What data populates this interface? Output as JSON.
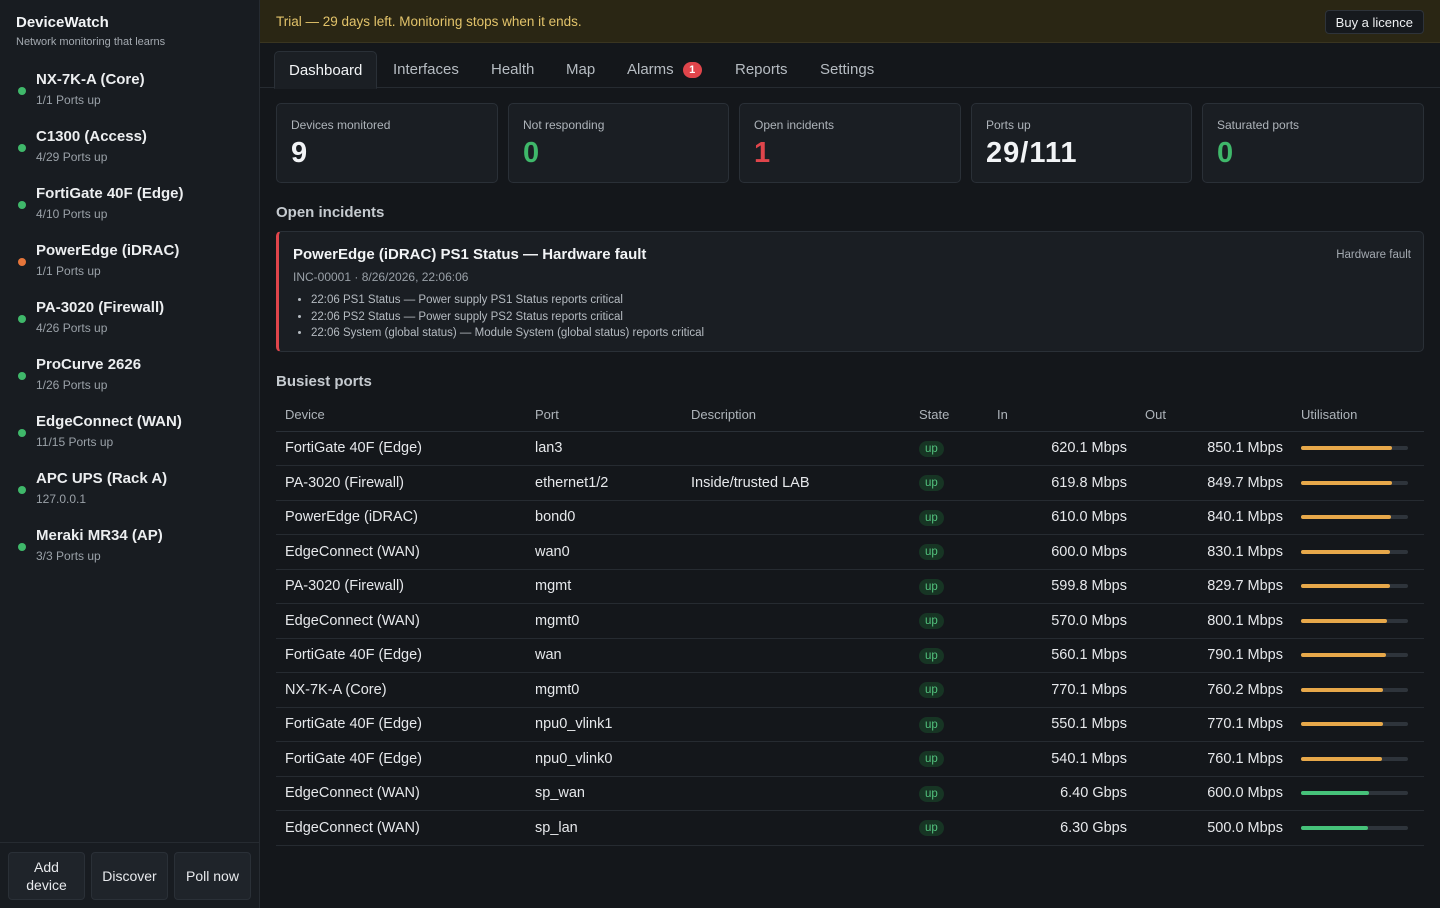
{
  "app": {
    "title": "DeviceWatch",
    "subtitle": "Network monitoring that learns"
  },
  "sidebar": {
    "devices": [
      {
        "name": "NX-7K-A (Core)",
        "sub": "1/1 Ports up",
        "status": "ok"
      },
      {
        "name": "C1300 (Access)",
        "sub": "4/29 Ports up",
        "status": "ok"
      },
      {
        "name": "FortiGate 40F (Edge)",
        "sub": "4/10 Ports up",
        "status": "ok"
      },
      {
        "name": "PowerEdge (iDRAC)",
        "sub": "1/1 Ports up",
        "status": "warn"
      },
      {
        "name": "PA-3020 (Firewall)",
        "sub": "4/26 Ports up",
        "status": "ok"
      },
      {
        "name": "ProCurve 2626",
        "sub": "1/26 Ports up",
        "status": "ok"
      },
      {
        "name": "EdgeConnect (WAN)",
        "sub": "11/15 Ports up",
        "status": "ok"
      },
      {
        "name": "APC UPS (Rack A)",
        "sub": "127.0.0.1",
        "status": "ok"
      },
      {
        "name": "Meraki MR34 (AP)",
        "sub": "3/3 Ports up",
        "status": "ok"
      }
    ],
    "actions": {
      "add": "Add device",
      "discover": "Discover",
      "poll": "Poll now"
    }
  },
  "banner": {
    "text": "Trial — 29 days left. Monitoring stops when it ends.",
    "buy": "Buy a licence"
  },
  "tabs": {
    "dashboard": "Dashboard",
    "interfaces": "Interfaces",
    "health": "Health",
    "map": "Map",
    "alarms": "Alarms",
    "alarms_count": "1",
    "reports": "Reports",
    "settings": "Settings"
  },
  "stats": {
    "devices": {
      "label": "Devices monitored",
      "value": "9"
    },
    "not_responding": {
      "label": "Not responding",
      "value": "0"
    },
    "open_incidents": {
      "label": "Open incidents",
      "value": "1"
    },
    "ports_up": {
      "label": "Ports up",
      "value": "29/111"
    },
    "saturated": {
      "label": "Saturated ports",
      "value": "0"
    }
  },
  "incidents": {
    "title": "Open incidents",
    "items": [
      {
        "title": "PowerEdge (iDRAC) PS1 Status — Hardware fault",
        "meta": "INC-00001 · 8/26/2026, 22:06:06",
        "tag": "Hardware fault",
        "events": [
          "22:06 PS1 Status — Power supply PS1 Status reports critical",
          "22:06 PS2 Status — Power supply PS2 Status reports critical",
          "22:06 System (global status) — Module System (global status) reports critical"
        ]
      }
    ]
  },
  "busiest": {
    "title": "Busiest ports",
    "columns": {
      "device": "Device",
      "port": "Port",
      "description": "Description",
      "state": "State",
      "in": "In",
      "out": "Out",
      "util": "Utilisation"
    },
    "rows": [
      {
        "device": "FortiGate 40F (Edge)",
        "port": "lan3",
        "description": "",
        "state": "up",
        "in": "620.1 Mbps",
        "out": "850.1 Mbps",
        "util": 0.85
      },
      {
        "device": "PA-3020 (Firewall)",
        "port": "ethernet1/2",
        "description": "Inside/trusted LAB",
        "state": "up",
        "in": "619.8 Mbps",
        "out": "849.7 Mbps",
        "util": 0.85
      },
      {
        "device": "PowerEdge (iDRAC)",
        "port": "bond0",
        "description": "",
        "state": "up",
        "in": "610.0 Mbps",
        "out": "840.1 Mbps",
        "util": 0.84
      },
      {
        "device": "EdgeConnect (WAN)",
        "port": "wan0",
        "description": "",
        "state": "up",
        "in": "600.0 Mbps",
        "out": "830.1 Mbps",
        "util": 0.83
      },
      {
        "device": "PA-3020 (Firewall)",
        "port": "mgmt",
        "description": "",
        "state": "up",
        "in": "599.8 Mbps",
        "out": "829.7 Mbps",
        "util": 0.83
      },
      {
        "device": "EdgeConnect (WAN)",
        "port": "mgmt0",
        "description": "",
        "state": "up",
        "in": "570.0 Mbps",
        "out": "800.1 Mbps",
        "util": 0.8
      },
      {
        "device": "FortiGate 40F (Edge)",
        "port": "wan",
        "description": "",
        "state": "up",
        "in": "560.1 Mbps",
        "out": "790.1 Mbps",
        "util": 0.79
      },
      {
        "device": "NX-7K-A (Core)",
        "port": "mgmt0",
        "description": "",
        "state": "up",
        "in": "770.1 Mbps",
        "out": "760.2 Mbps",
        "util": 0.77
      },
      {
        "device": "FortiGate 40F (Edge)",
        "port": "npu0_vlink1",
        "description": "",
        "state": "up",
        "in": "550.1 Mbps",
        "out": "770.1 Mbps",
        "util": 0.77
      },
      {
        "device": "FortiGate 40F (Edge)",
        "port": "npu0_vlink0",
        "description": "",
        "state": "up",
        "in": "540.1 Mbps",
        "out": "760.1 Mbps",
        "util": 0.76
      },
      {
        "device": "EdgeConnect (WAN)",
        "port": "sp_wan",
        "description": "",
        "state": "up",
        "in": "6.40 Gbps",
        "out": "600.0 Mbps",
        "util": 0.64
      },
      {
        "device": "EdgeConnect (WAN)",
        "port": "sp_lan",
        "description": "",
        "state": "up",
        "in": "6.30 Gbps",
        "out": "500.0 Mbps",
        "util": 0.63
      }
    ]
  },
  "colors": {
    "ok": "#3fb86a",
    "warn": "#e5753a",
    "danger": "#e0454b",
    "util_high": "#e7a84a",
    "util_normal": "#46c27a",
    "accent": "#e2c36a"
  }
}
